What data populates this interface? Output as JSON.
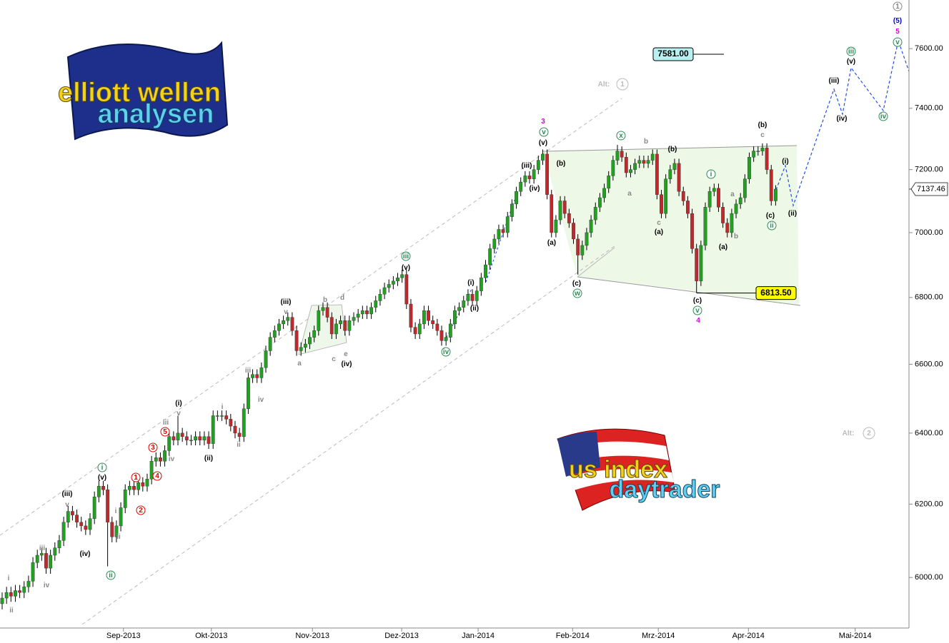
{
  "chart_data": {
    "type": "candlestick",
    "up_color": "#22a022",
    "down_color": "#c0282b",
    "wick_color": "#000000",
    "log": true,
    "grid": false,
    "ylim": [
      5866,
      7767
    ],
    "yticks": [
      {
        "value": 6000,
        "label": "6000.00"
      },
      {
        "value": 6200,
        "label": "6200.00"
      },
      {
        "value": 6400,
        "label": "6400.00"
      },
      {
        "value": 6600,
        "label": "6600.00"
      },
      {
        "value": 6800,
        "label": "6800.00"
      },
      {
        "value": 7000,
        "label": "7000.00"
      },
      {
        "value": 7200,
        "label": "7200.00"
      },
      {
        "value": 7400,
        "label": "7400.00"
      },
      {
        "value": 7600,
        "label": "7600.00"
      }
    ],
    "xlim": [
      -0.49,
      206.34
    ],
    "xticks": [
      {
        "value": 27.6,
        "label": "Sep-2013"
      },
      {
        "value": 47.6,
        "label": "Okt-2013"
      },
      {
        "value": 70.6,
        "label": "Nov-2013"
      },
      {
        "value": 90.9,
        "label": "Dez-2013"
      },
      {
        "value": 108.3,
        "label": "Jan-2014"
      },
      {
        "value": 129.8,
        "label": "Feb-2014"
      },
      {
        "value": 149.3,
        "label": "Mrz-2014"
      },
      {
        "value": 169.8,
        "label": "Apr-2014"
      },
      {
        "value": 194.1,
        "label": "Mai-2014"
      }
    ],
    "open": [
      5930,
      5945,
      5960,
      5950,
      5965,
      5960,
      5975,
      5990,
      6040,
      6060,
      6065,
      6025,
      6060,
      6080,
      6100,
      6150,
      6180,
      6170,
      6150,
      6140,
      6130,
      6160,
      6220,
      6250,
      6240,
      6150,
      6110,
      6140,
      6190,
      6240,
      6250,
      6240,
      6260,
      6250,
      6270,
      6320,
      6330,
      6320,
      6350,
      6390,
      6380,
      6400,
      6390,
      6380,
      6380,
      6390,
      6380,
      6390,
      6370,
      6450,
      6450,
      6450,
      6440,
      6420,
      6400,
      6390,
      6470,
      6560,
      6570,
      6560,
      6590,
      6640,
      6680,
      6700,
      6720,
      6730,
      6740,
      6700,
      6640,
      6650,
      6660,
      6680,
      6700,
      6760,
      6770,
      6740,
      6690,
      6720,
      6730,
      6700,
      6730,
      6740,
      6750,
      6760,
      6750,
      6770,
      6790,
      6810,
      6830,
      6840,
      6850,
      6860,
      6870,
      6780,
      6710,
      6690,
      6720,
      6760,
      6730,
      6720,
      6700,
      6670,
      6680,
      6720,
      6760,
      6770,
      6790,
      6810,
      6790,
      6820,
      6860,
      6900,
      6950,
      6980,
      7010,
      7000,
      7050,
      7090,
      7130,
      7160,
      7180,
      7170,
      7200,
      7230,
      7250,
      7120,
      7000,
      7040,
      7100,
      7060,
      7030,
      6980,
      6930,
      6960,
      7000,
      7040,
      7080,
      7110,
      7140,
      7180,
      7230,
      7260,
      7240,
      7190,
      7200,
      7220,
      7230,
      7220,
      7230,
      7250,
      7120,
      7060,
      7170,
      7200,
      7220,
      7130,
      7100,
      7060,
      6950,
      6850,
      6960,
      7080,
      7130,
      7140,
      7080,
      7030,
      7000,
      7060,
      7090,
      7110,
      7170,
      7240,
      7260,
      7260,
      7270,
      7200,
      7100
    ],
    "high": [
      5960,
      5975,
      5975,
      5980,
      5980,
      5990,
      6005,
      6055,
      6075,
      6080,
      6080,
      6075,
      6095,
      6115,
      6165,
      6195,
      6195,
      6185,
      6165,
      6155,
      6175,
      6235,
      6265,
      6265,
      6255,
      6165,
      6155,
      6205,
      6255,
      6265,
      6265,
      6275,
      6275,
      6285,
      6335,
      6345,
      6345,
      6365,
      6405,
      6405,
      6450,
      6415,
      6405,
      6395,
      6405,
      6405,
      6405,
      6405,
      6465,
      6465,
      6465,
      6465,
      6455,
      6435,
      6415,
      6485,
      6575,
      6585,
      6585,
      6605,
      6655,
      6695,
      6715,
      6735,
      6745,
      6755,
      6755,
      6715,
      6665,
      6675,
      6695,
      6715,
      6775,
      6785,
      6785,
      6755,
      6735,
      6745,
      6745,
      6745,
      6755,
      6765,
      6775,
      6775,
      6785,
      6805,
      6825,
      6845,
      6855,
      6865,
      6875,
      6885,
      6885,
      6795,
      6725,
      6735,
      6775,
      6775,
      6745,
      6735,
      6715,
      6695,
      6735,
      6775,
      6785,
      6805,
      6825,
      6825,
      6835,
      6875,
      6915,
      6965,
      6995,
      7025,
      7025,
      7065,
      7105,
      7145,
      7175,
      7195,
      7195,
      7215,
      7245,
      7265,
      7265,
      7135,
      7055,
      7115,
      7115,
      7075,
      7045,
      6995,
      6975,
      7015,
      7055,
      7095,
      7125,
      7155,
      7195,
      7245,
      7280,
      7275,
      7255,
      7215,
      7235,
      7245,
      7245,
      7245,
      7265,
      7265,
      7135,
      7185,
      7215,
      7235,
      7235,
      7145,
      7115,
      7075,
      6965,
      6975,
      7095,
      7145,
      7155,
      7155,
      7095,
      7045,
      7075,
      7105,
      7125,
      7185,
      7255,
      7275,
      7275,
      7285,
      7285,
      7215,
      7150
    ],
    "low": [
      5915,
      5930,
      5935,
      5935,
      5945,
      5945,
      5960,
      5975,
      6025,
      6045,
      6010,
      6010,
      6045,
      6065,
      6085,
      6135,
      6155,
      6135,
      6125,
      6115,
      6115,
      6145,
      6205,
      6225,
      6030,
      6095,
      6095,
      6125,
      6175,
      6225,
      6225,
      6225,
      6235,
      6235,
      6255,
      6305,
      6305,
      6305,
      6335,
      6365,
      6365,
      6375,
      6365,
      6365,
      6365,
      6365,
      6365,
      6355,
      6355,
      6435,
      6435,
      6425,
      6405,
      6385,
      6375,
      6375,
      6455,
      6545,
      6545,
      6545,
      6575,
      6625,
      6665,
      6685,
      6705,
      6715,
      6685,
      6625,
      6625,
      6635,
      6645,
      6665,
      6685,
      6745,
      6725,
      6675,
      6675,
      6705,
      6685,
      6685,
      6715,
      6725,
      6735,
      6735,
      6735,
      6755,
      6775,
      6795,
      6815,
      6825,
      6835,
      6845,
      6765,
      6695,
      6675,
      6675,
      6705,
      6715,
      6705,
      6685,
      6655,
      6655,
      6665,
      6705,
      6745,
      6755,
      6775,
      6775,
      6775,
      6805,
      6845,
      6885,
      6935,
      6965,
      6985,
      6985,
      7035,
      7075,
      7115,
      7145,
      7155,
      7155,
      7185,
      7215,
      7105,
      6985,
      6985,
      7025,
      7045,
      7015,
      6965,
      6870,
      6915,
      6945,
      6985,
      7025,
      7065,
      7095,
      7125,
      7165,
      7215,
      7225,
      7175,
      7175,
      7185,
      7205,
      7205,
      7205,
      7215,
      7105,
      7045,
      7045,
      7155,
      7185,
      7115,
      7085,
      7045,
      6935,
      6813.5,
      6835,
      6945,
      7065,
      7115,
      7065,
      7015,
      6985,
      6985,
      7045,
      7075,
      7095,
      7155,
      7225,
      7245,
      7245,
      7185,
      7085,
      7085
    ],
    "close": [
      5945,
      5960,
      5950,
      5965,
      5960,
      5975,
      5990,
      6040,
      6060,
      6065,
      6025,
      6060,
      6080,
      6100,
      6150,
      6180,
      6170,
      6150,
      6140,
      6130,
      6160,
      6220,
      6250,
      6240,
      6150,
      6110,
      6140,
      6190,
      6240,
      6250,
      6240,
      6260,
      6250,
      6270,
      6320,
      6330,
      6320,
      6350,
      6390,
      6380,
      6400,
      6390,
      6380,
      6380,
      6390,
      6380,
      6390,
      6370,
      6450,
      6450,
      6450,
      6440,
      6420,
      6400,
      6390,
      6470,
      6560,
      6570,
      6560,
      6590,
      6640,
      6680,
      6700,
      6720,
      6730,
      6740,
      6700,
      6640,
      6650,
      6660,
      6680,
      6700,
      6760,
      6770,
      6740,
      6690,
      6720,
      6730,
      6700,
      6730,
      6740,
      6750,
      6760,
      6750,
      6770,
      6790,
      6810,
      6830,
      6840,
      6850,
      6860,
      6870,
      6780,
      6710,
      6690,
      6720,
      6760,
      6730,
      6720,
      6700,
      6670,
      6680,
      6720,
      6760,
      6770,
      6790,
      6810,
      6790,
      6820,
      6860,
      6900,
      6950,
      6980,
      7010,
      7000,
      7050,
      7090,
      7130,
      7160,
      7180,
      7170,
      7200,
      7230,
      7250,
      7120,
      7000,
      7040,
      7100,
      7060,
      7030,
      6980,
      6930,
      6960,
      7000,
      7040,
      7080,
      7110,
      7140,
      7180,
      7230,
      7260,
      7240,
      7190,
      7200,
      7220,
      7230,
      7220,
      7230,
      7250,
      7120,
      7060,
      7170,
      7200,
      7220,
      7130,
      7100,
      7060,
      6950,
      6850,
      6960,
      7080,
      7130,
      7140,
      7080,
      7030,
      7000,
      7060,
      7090,
      7110,
      7170,
      7240,
      7260,
      7260,
      7270,
      7200,
      7100,
      7137.46
    ],
    "levels": [
      {
        "value": 7581,
        "label": "7581.00",
        "color": "#b8f0f0"
      },
      {
        "value": 6813.5,
        "label": "6813.50",
        "color": "#ffff00"
      }
    ],
    "last_price": {
      "value": 7137.46,
      "label": "7137.46"
    },
    "annotations": [
      {
        "text": "i",
        "color": "#888888"
      },
      {
        "text": "ii",
        "color": "#888888"
      },
      {
        "text": "iii",
        "color": "#888888"
      },
      {
        "text": "iv",
        "color": "#888888"
      },
      {
        "text": "(iii)",
        "color": "#000000"
      },
      {
        "text": "v",
        "color": "#888888"
      },
      {
        "text": "(iv)",
        "color": "#000000"
      },
      {
        "text": "i",
        "color": "#2e8b57"
      },
      {
        "text": "(v)",
        "color": "#000000"
      },
      {
        "text": "ii",
        "color": "#2e8b57"
      },
      {
        "text": "i",
        "color": "#888888"
      },
      {
        "text": "ii",
        "color": "#888888"
      },
      {
        "text": "1",
        "color": "#e00000"
      },
      {
        "text": "2",
        "color": "#e00000"
      },
      {
        "text": "3",
        "color": "#e00000"
      },
      {
        "text": "4",
        "color": "#e00000"
      },
      {
        "text": "5",
        "color": "#e00000"
      },
      {
        "text": "iii",
        "color": "#888888"
      },
      {
        "text": "iv",
        "color": "#888888"
      },
      {
        "text": "(i)",
        "color": "#000000"
      },
      {
        "text": "v",
        "color": "#888888"
      },
      {
        "text": "(ii)",
        "color": "#000000"
      },
      {
        "text": "i",
        "color": "#888888"
      },
      {
        "text": "ii",
        "color": "#888888"
      },
      {
        "text": "iii",
        "color": "#888888"
      },
      {
        "text": "iv",
        "color": "#888888"
      },
      {
        "text": "(iii)",
        "color": "#000000"
      },
      {
        "text": "v",
        "color": "#888888"
      },
      {
        "text": "a",
        "color": "#888888"
      },
      {
        "text": "b",
        "color": "#888888"
      },
      {
        "text": "c",
        "color": "#888888"
      },
      {
        "text": "d",
        "color": "#888888"
      },
      {
        "text": "e",
        "color": "#888888"
      },
      {
        "text": "(iv)",
        "color": "#000000"
      },
      {
        "text": "iii",
        "color": "#2e8b57"
      },
      {
        "text": "(v)",
        "color": "#000000"
      },
      {
        "text": "iv",
        "color": "#2e8b57"
      },
      {
        "text": "(i)",
        "color": "#000000"
      },
      {
        "text": "(ii)",
        "color": "#000000"
      },
      {
        "text": "(iii)",
        "color": "#000000"
      },
      {
        "text": "(iv)",
        "color": "#000000"
      },
      {
        "text": "3",
        "color": "#e000e0"
      },
      {
        "text": "v",
        "color": "#2e8b57"
      },
      {
        "text": "(v)",
        "color": "#000000"
      },
      {
        "text": "(b)",
        "color": "#000000"
      },
      {
        "text": "(a)",
        "color": "#000000"
      },
      {
        "text": "(c)",
        "color": "#000000"
      },
      {
        "text": "w",
        "color": "#2e8b57"
      },
      {
        "text": "x",
        "color": "#2e8b57"
      },
      {
        "text": "b",
        "color": "#888888"
      },
      {
        "text": "a",
        "color": "#888888"
      },
      {
        "text": "c",
        "color": "#888888"
      },
      {
        "text": "(a)",
        "color": "#000000"
      },
      {
        "text": "(b)",
        "color": "#000000"
      },
      {
        "text": "(c)",
        "color": "#000000"
      },
      {
        "text": "v",
        "color": "#2e8b57"
      },
      {
        "text": "4",
        "color": "#e000e0"
      },
      {
        "text": "i",
        "color": "#2e8b57"
      },
      {
        "text": "a",
        "color": "#888888"
      },
      {
        "text": "b",
        "color": "#888888"
      },
      {
        "text": "(a)",
        "color": "#000000"
      },
      {
        "text": "(b)",
        "color": "#000000"
      },
      {
        "text": "c",
        "color": "#888888"
      },
      {
        "text": "(i)",
        "color": "#000000"
      },
      {
        "text": "(c)",
        "color": "#000000"
      },
      {
        "text": "ii",
        "color": "#2e8b57"
      },
      {
        "text": "(ii)",
        "color": "#000000"
      },
      {
        "text": "(iii)",
        "color": "#000000"
      },
      {
        "text": "(iv)",
        "color": "#000000"
      },
      {
        "text": "iii",
        "color": "#2e8b57"
      },
      {
        "text": "(v)",
        "color": "#000000"
      },
      {
        "text": "iv",
        "color": "#2e8b57"
      },
      {
        "text": "1",
        "color": "#888888"
      },
      {
        "text": "(5)",
        "color": "#0000cc"
      },
      {
        "text": "5",
        "color": "#e000e0"
      },
      {
        "text": "v",
        "color": "#2e8b57"
      },
      {
        "text": "Alt:",
        "color": "#bbbbbb"
      },
      {
        "text": "1",
        "color": "#bbbbbb"
      },
      {
        "text": "Alt:",
        "color": "#bbbbbb"
      },
      {
        "text": "2",
        "color": "#bbbbbb"
      }
    ]
  },
  "logos": {
    "top": [
      "elliott wellen",
      "analysen"
    ],
    "bottom": [
      "us index",
      "daytrader"
    ]
  }
}
